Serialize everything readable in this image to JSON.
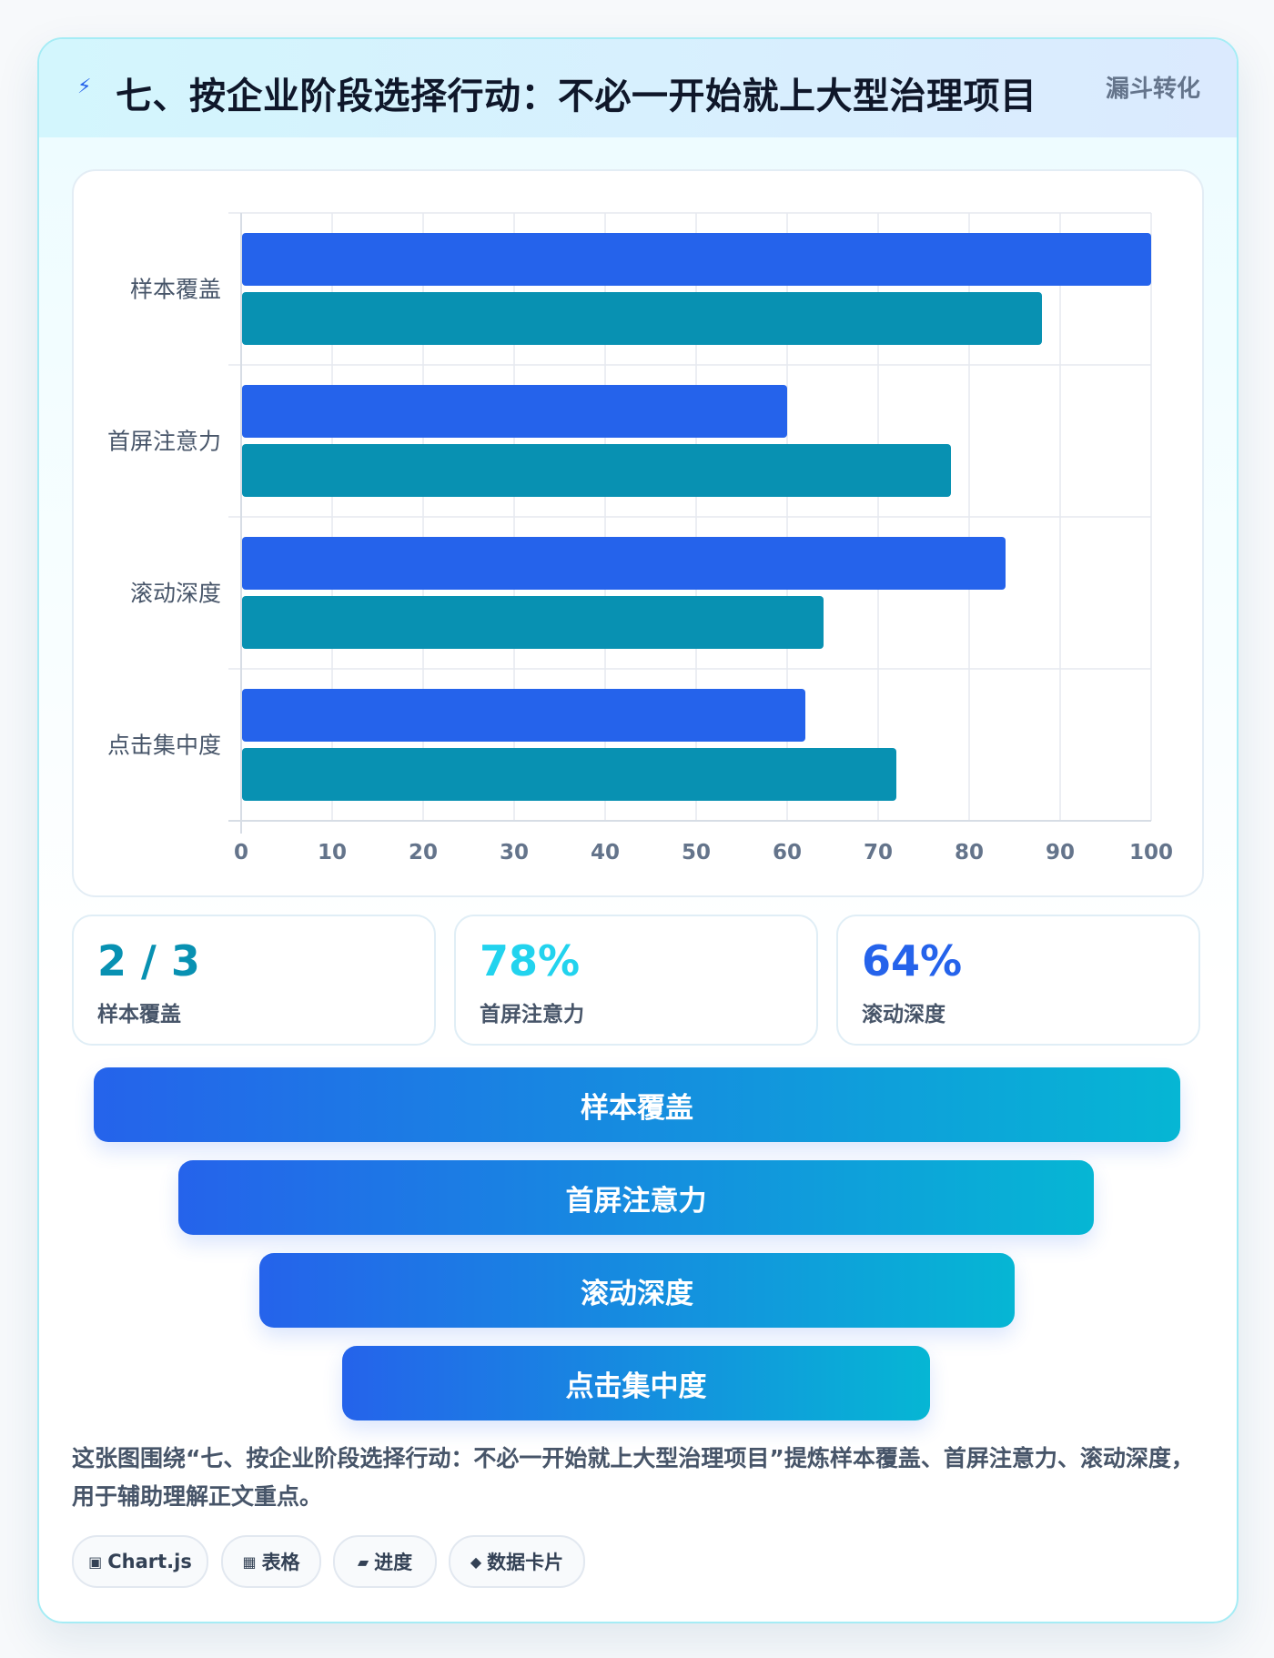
{
  "header": {
    "icon": "lightning-icon",
    "icon_glyph": "⚡",
    "title": "七、按企业阶段选择行动：不必一开始就上大型治理项目",
    "tag": "漏斗转化"
  },
  "chart_data": {
    "type": "bar",
    "orientation": "horizontal",
    "categories": [
      "样本覆盖",
      "首屏注意力",
      "滚动深度",
      "点击集中度"
    ],
    "series": [
      {
        "values": [
          100,
          60,
          84,
          62
        ],
        "color": "#2563eb"
      },
      {
        "values": [
          88,
          78,
          64,
          72
        ],
        "color": "#0891b2"
      }
    ],
    "xlim": [
      0,
      100
    ],
    "x_ticks": [
      0,
      10,
      20,
      30,
      40,
      50,
      60,
      70,
      80,
      90,
      100
    ],
    "grid": true,
    "legend": "none"
  },
  "stats": [
    {
      "value": "2 / 3",
      "label": "样本覆盖",
      "color": "#0891b2"
    },
    {
      "value": "78%",
      "label": "首屏注意力",
      "color": "#22d3ee"
    },
    {
      "value": "64%",
      "label": "滚动深度",
      "color": "#2563eb"
    }
  ],
  "funnel": [
    "样本覆盖",
    "首屏注意力",
    "滚动深度",
    "点击集中度"
  ],
  "description": "这张图围绕“七、按企业阶段选择行动：不必一开始就上大型治理项目”提炼样本覆盖、首屏注意力、滚动深度，用于辅助理解正文重点。",
  "chips": [
    {
      "icon": "chart-icon",
      "glyph": "▣",
      "label": "Chart.js"
    },
    {
      "icon": "table-icon",
      "glyph": "▦",
      "label": "表格"
    },
    {
      "icon": "progress-icon",
      "glyph": "▰",
      "label": "进度"
    },
    {
      "icon": "diamond-icon",
      "glyph": "◆",
      "label": "数据卡片"
    }
  ]
}
